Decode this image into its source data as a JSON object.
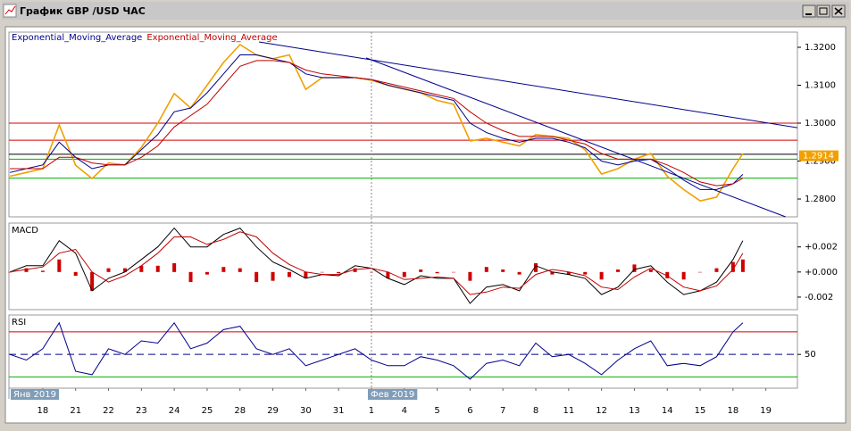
{
  "window_title": "График GBP /USD ЧАС",
  "chart_data": [
    {
      "type": "line",
      "x": [
        -1,
        -0.5,
        0,
        0.5,
        1,
        1.5,
        2,
        2.5,
        3,
        3.5,
        4,
        4.5,
        5,
        5.5,
        6,
        6.5,
        7,
        7.5,
        8,
        8.5,
        9,
        9.5,
        10,
        10.5,
        11,
        11.5,
        12,
        12.5,
        13,
        13.5,
        14,
        14.5,
        15,
        15.5,
        16,
        16.5,
        17,
        17.5,
        18,
        18.5,
        19,
        19.5,
        20,
        20.5,
        21,
        21.3
      ],
      "series": [
        {
          "color": "#f0a000",
          "values": [
            1.286,
            1.287,
            1.288,
            1.2995,
            1.2889,
            1.2854,
            1.2895,
            1.289,
            1.2936,
            1.3,
            1.3078,
            1.304,
            1.31,
            1.316,
            1.3207,
            1.318,
            1.317,
            1.318,
            1.3089,
            1.312,
            1.312,
            1.312,
            1.3113,
            1.31,
            1.309,
            1.308,
            1.306,
            1.305,
            1.2953,
            1.296,
            1.295,
            1.294,
            1.297,
            1.2965,
            1.296,
            1.293,
            1.2866,
            1.288,
            1.2905,
            1.292,
            1.286,
            1.2825,
            1.2795,
            1.2805,
            1.288,
            1.292
          ]
        },
        {
          "name": "Exponential_Moving_Average",
          "color": "#00008b",
          "values": [
            1.287,
            1.288,
            1.289,
            1.295,
            1.291,
            1.288,
            1.289,
            1.289,
            1.293,
            1.297,
            1.303,
            1.304,
            1.308,
            1.313,
            1.318,
            1.318,
            1.317,
            1.316,
            1.313,
            1.312,
            1.312,
            1.312,
            1.3115,
            1.31,
            1.309,
            1.308,
            1.307,
            1.306,
            1.3,
            1.2975,
            1.296,
            1.295,
            1.296,
            1.296,
            1.295,
            1.2935,
            1.29,
            1.289,
            1.29,
            1.2905,
            1.288,
            1.285,
            1.2825,
            1.2825,
            1.284,
            1.2865
          ]
        },
        {
          "name": "Exponential_Moving_Average",
          "color": "#c00000",
          "values": [
            1.288,
            1.288,
            1.288,
            1.291,
            1.291,
            1.2895,
            1.289,
            1.289,
            1.291,
            1.294,
            1.299,
            1.302,
            1.305,
            1.31,
            1.315,
            1.3165,
            1.3165,
            1.316,
            1.314,
            1.313,
            1.3125,
            1.312,
            1.3115,
            1.3105,
            1.3095,
            1.3085,
            1.3075,
            1.3065,
            1.303,
            1.3,
            1.298,
            1.2965,
            1.2965,
            1.2965,
            1.2955,
            1.2945,
            1.292,
            1.2905,
            1.2905,
            1.2905,
            1.289,
            1.287,
            1.2845,
            1.2835,
            1.284,
            1.2855
          ]
        }
      ],
      "levels": [
        {
          "value": 1.3,
          "color": "#d00000"
        },
        {
          "value": 1.2955,
          "color": "#d00000"
        },
        {
          "value": 1.2918,
          "color": "#000000"
        },
        {
          "value": 1.2905,
          "color": "#00b000"
        },
        {
          "value": 1.2855,
          "color": "#00b000"
        }
      ],
      "trendlines": [
        {
          "x": [
            6.58,
            22.96
          ],
          "y": [
            1.3214,
            1.2988
          ],
          "color": "#00008b"
        },
        {
          "x": [
            9.84,
            22.6
          ],
          "y": [
            1.3172,
            1.2753
          ],
          "color": "#00008b"
        }
      ],
      "last_price": 1.2914,
      "xlim": [
        -1.03,
        22.96
      ],
      "ylim": [
        1.2753,
        1.324
      ],
      "yticks": [
        {
          "value": 1.32,
          "label": "1.3200"
        },
        {
          "value": 1.31,
          "label": "1.3100"
        },
        {
          "value": 1.3,
          "label": "1.3000"
        },
        {
          "value": 1.29,
          "label": "1.2900"
        },
        {
          "value": 1.28,
          "label": "1.2800"
        }
      ]
    },
    {
      "type": "line",
      "title": "MACD",
      "x": [
        -1,
        -0.5,
        0,
        0.5,
        1,
        1.5,
        2,
        2.5,
        3,
        3.5,
        4,
        4.5,
        5,
        5.5,
        6,
        6.5,
        7,
        7.5,
        8,
        8.5,
        9,
        9.5,
        10,
        10.5,
        11,
        11.5,
        12,
        12.5,
        13,
        13.5,
        14,
        14.5,
        15,
        15.5,
        16,
        16.5,
        17,
        17.5,
        18,
        18.5,
        19,
        19.5,
        20,
        20.5,
        21,
        21.3
      ],
      "series": [
        {
          "type": "bar",
          "color": "#d00000",
          "values": [
            0,
            0.0003,
            0.0001,
            0.001,
            -0.0003,
            -0.0015,
            0.0003,
            0.0003,
            0.0005,
            0.0005,
            0.0007,
            -0.0008,
            -0.0002,
            0.0004,
            0.0003,
            -0.0008,
            -0.0007,
            -0.0004,
            -0.0005,
            0,
            -0.0001,
            0.0003,
            0,
            -0.0005,
            -0.0004,
            0.0002,
            -0.0001,
            0,
            -0.0007,
            0.0004,
            0.0002,
            -0.0002,
            0.0007,
            -0.0002,
            -0.0002,
            -0.0002,
            -0.0006,
            0.0002,
            0.0006,
            0.0002,
            -0.0005,
            -0.0006,
            0,
            0.0003,
            0.0008,
            0.001
          ]
        },
        {
          "color": "#000000",
          "values": [
            0,
            0.0005,
            0.0005,
            0.0025,
            0.0015,
            -0.0015,
            -0.0005,
            0,
            0.001,
            0.002,
            0.0035,
            0.002,
            0.002,
            0.003,
            0.0035,
            0.002,
            0.0008,
            0.0002,
            -0.0005,
            -0.0002,
            -0.0003,
            0.0005,
            0.0003,
            -0.0005,
            -0.001,
            -0.0003,
            -0.0005,
            -0.0005,
            -0.0025,
            -0.0012,
            -0.001,
            -0.0015,
            0.0005,
            0,
            -0.0002,
            -0.0005,
            -0.0018,
            -0.0012,
            0.0002,
            0.0005,
            -0.0008,
            -0.0018,
            -0.0015,
            -0.0008,
            0.001,
            0.0025
          ]
        },
        {
          "color": "#c00000",
          "values": [
            0,
            0.0002,
            0.0004,
            0.0015,
            0.0018,
            0,
            -0.0008,
            -0.0003,
            0.0005,
            0.0015,
            0.0028,
            0.0028,
            0.0022,
            0.0026,
            0.0032,
            0.0028,
            0.0015,
            0.0006,
            0,
            -0.0002,
            -0.0002,
            0.0002,
            0.0003,
            0,
            -0.0006,
            -0.0005,
            -0.0004,
            -0.0005,
            -0.0018,
            -0.0016,
            -0.0012,
            -0.0013,
            -0.0002,
            0.0002,
            0,
            -0.0003,
            -0.0012,
            -0.0014,
            -0.0004,
            0.0003,
            -0.0003,
            -0.0012,
            -0.0015,
            -0.0011,
            0.0002,
            0.0015
          ]
        }
      ],
      "xlim": [
        -1.03,
        22.96
      ],
      "ylim": [
        -0.003,
        0.0039
      ],
      "yticks": [
        {
          "value": 0.002,
          "label": "+0.002"
        },
        {
          "value": 0,
          "label": "+0.000"
        },
        {
          "value": -0.002,
          "label": "-0.002"
        }
      ]
    },
    {
      "type": "line",
      "title": "RSI",
      "x": [
        -1,
        -0.5,
        0,
        0.5,
        1,
        1.5,
        2,
        2.5,
        3,
        3.5,
        4,
        4.5,
        5,
        5.5,
        6,
        6.5,
        7,
        7.5,
        8,
        8.5,
        9,
        9.5,
        10,
        10.5,
        11,
        11.5,
        12,
        12.5,
        13,
        13.5,
        14,
        14.5,
        15,
        15.5,
        16,
        16.5,
        17,
        17.5,
        18,
        18.5,
        19,
        19.5,
        20,
        20.5,
        21,
        21.3
      ],
      "series": [
        {
          "color": "#00008b",
          "values": [
            50,
            45,
            55,
            78,
            35,
            32,
            55,
            50,
            62,
            60,
            78,
            55,
            60,
            72,
            75,
            55,
            50,
            55,
            40,
            45,
            50,
            55,
            45,
            40,
            40,
            48,
            45,
            40,
            28,
            42,
            45,
            40,
            60,
            48,
            50,
            42,
            32,
            45,
            55,
            62,
            40,
            42,
            40,
            48,
            70,
            78
          ]
        }
      ],
      "levels": [
        {
          "value": 70,
          "color": "#d00000"
        },
        {
          "value": 30,
          "color": "#00b000"
        },
        {
          "value": 50,
          "color": "#00008b",
          "dashed": true
        }
      ],
      "xlim": [
        -1.03,
        22.96
      ],
      "ylim": [
        20,
        85
      ],
      "yticks": [
        50
      ],
      "xticks": [
        {
          "value": 0,
          "label": "18"
        },
        {
          "value": 1,
          "label": "21"
        },
        {
          "value": 2,
          "label": "22"
        },
        {
          "value": 3,
          "label": "23"
        },
        {
          "value": 4,
          "label": "24"
        },
        {
          "value": 5,
          "label": "25"
        },
        {
          "value": 6,
          "label": "28"
        },
        {
          "value": 7,
          "label": "29"
        },
        {
          "value": 8,
          "label": "30"
        },
        {
          "value": 9,
          "label": "31"
        },
        {
          "value": 10,
          "label": "1"
        },
        {
          "value": 11,
          "label": "4"
        },
        {
          "value": 12,
          "label": "5"
        },
        {
          "value": 13,
          "label": "6"
        },
        {
          "value": 14,
          "label": "7"
        },
        {
          "value": 15,
          "label": "8"
        },
        {
          "value": 16,
          "label": "11"
        },
        {
          "value": 17,
          "label": "12"
        },
        {
          "value": 18,
          "label": "13"
        },
        {
          "value": 19,
          "label": "14"
        },
        {
          "value": 20,
          "label": "15"
        },
        {
          "value": 21,
          "label": "18"
        },
        {
          "value": 22,
          "label": "19"
        }
      ],
      "x_markers": [
        {
          "at": -1.03,
          "label": "Янв 2019"
        },
        {
          "at": 10,
          "label": "Фев 2019"
        }
      ]
    }
  ]
}
